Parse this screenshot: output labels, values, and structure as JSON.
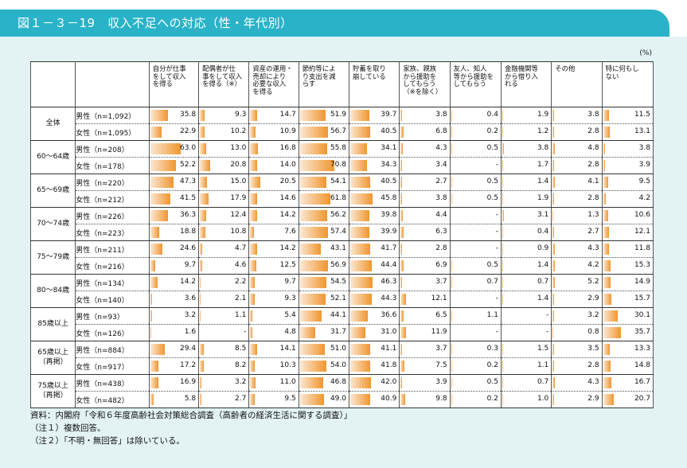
{
  "title": "図１－３－19　収入不足への対応（性・年代別）",
  "unit": "(%)",
  "columns": [
    "自分が仕事\nをして収入\nを得る",
    "配偶者が仕\n事をして収入\nを得る（※）",
    "資産の運用・\n売却により\n必要な収入\nを得る",
    "節約等によ\nり支出を減\nらす",
    "貯蓄を取り\n崩している",
    "家族、親族\nから援助を\nしてもらう\n（※を除く）",
    "友人、知人\n等から援助を\nしてもらう",
    "金融機関等\nから借り入\nれる",
    "その他",
    "特に何もし\nない"
  ],
  "groups": [
    {
      "label": "全体",
      "rows": [
        {
          "sex": "男性（n=1,092）",
          "values": [
            "35.8",
            "9.3",
            "14.7",
            "51.9",
            "39.7",
            "3.8",
            "0.4",
            "1.9",
            "3.8",
            "11.5"
          ]
        },
        {
          "sex": "女性（n=1,095）",
          "values": [
            "22.9",
            "10.2",
            "10.9",
            "56.7",
            "40.5",
            "6.8",
            "0.2",
            "1.2",
            "2.8",
            "13.1"
          ]
        }
      ]
    },
    {
      "label": "60～64歳",
      "rows": [
        {
          "sex": "男性（n=208）",
          "values": [
            "63.0",
            "13.0",
            "16.8",
            "55.8",
            "34.1",
            "4.3",
            "0.5",
            "3.8",
            "4.8",
            "3.8"
          ]
        },
        {
          "sex": "女性（n=178）",
          "values": [
            "52.2",
            "20.8",
            "14.0",
            "70.8",
            "34.3",
            "3.4",
            "-",
            "1.7",
            "2.8",
            "3.9"
          ]
        }
      ]
    },
    {
      "label": "65～69歳",
      "rows": [
        {
          "sex": "男性（n=220）",
          "values": [
            "47.3",
            "15.0",
            "20.5",
            "54.1",
            "40.5",
            "2.7",
            "0.5",
            "1.4",
            "4.1",
            "9.5"
          ]
        },
        {
          "sex": "女性（n=212）",
          "values": [
            "41.5",
            "17.9",
            "14.6",
            "61.8",
            "45.8",
            "3.8",
            "0.5",
            "1.9",
            "2.8",
            "4.2"
          ]
        }
      ]
    },
    {
      "label": "70～74歳",
      "rows": [
        {
          "sex": "男性（n=226）",
          "values": [
            "36.3",
            "12.4",
            "14.2",
            "56.2",
            "39.8",
            "4.4",
            "-",
            "3.1",
            "1.3",
            "10.6"
          ]
        },
        {
          "sex": "女性（n=223）",
          "values": [
            "18.8",
            "10.8",
            "7.6",
            "57.4",
            "39.9",
            "6.3",
            "-",
            "0.4",
            "2.7",
            "12.1"
          ]
        }
      ]
    },
    {
      "label": "75～79歳",
      "rows": [
        {
          "sex": "男性（n=211）",
          "values": [
            "24.6",
            "4.7",
            "14.2",
            "43.1",
            "41.7",
            "2.8",
            "-",
            "0.9",
            "4.3",
            "11.8"
          ]
        },
        {
          "sex": "女性（n=216）",
          "values": [
            "9.7",
            "4.6",
            "12.5",
            "56.9",
            "44.4",
            "6.9",
            "0.5",
            "1.4",
            "4.2",
            "15.3"
          ]
        }
      ]
    },
    {
      "label": "80～84歳",
      "rows": [
        {
          "sex": "男性（n=134）",
          "values": [
            "14.2",
            "2.2",
            "9.7",
            "54.5",
            "46.3",
            "3.7",
            "0.7",
            "0.7",
            "5.2",
            "14.9"
          ]
        },
        {
          "sex": "女性（n=140）",
          "values": [
            "3.6",
            "2.1",
            "9.3",
            "52.1",
            "44.3",
            "12.1",
            "-",
            "1.4",
            "2.9",
            "15.7"
          ]
        }
      ]
    },
    {
      "label": "85歳以上",
      "rows": [
        {
          "sex": "男性（n=93）",
          "values": [
            "3.2",
            "1.1",
            "5.4",
            "44.1",
            "36.6",
            "6.5",
            "1.1",
            "-",
            "3.2",
            "30.1"
          ]
        },
        {
          "sex": "女性（n=126）",
          "values": [
            "1.6",
            "-",
            "4.8",
            "31.7",
            "31.0",
            "11.9",
            "-",
            "-",
            "0.8",
            "35.7"
          ]
        }
      ]
    },
    {
      "label": "65歳以上\n（再掲）",
      "rows": [
        {
          "sex": "男性（n=884）",
          "values": [
            "29.4",
            "8.5",
            "14.1",
            "51.0",
            "41.1",
            "3.7",
            "0.3",
            "1.5",
            "3.5",
            "13.3"
          ]
        },
        {
          "sex": "女性（n=917）",
          "values": [
            "17.2",
            "8.2",
            "10.3",
            "54.0",
            "41.8",
            "7.5",
            "0.2",
            "1.1",
            "2.8",
            "14.8"
          ]
        }
      ]
    },
    {
      "label": "75歳以上\n（再掲）",
      "rows": [
        {
          "sex": "男性（n=438）",
          "values": [
            "16.9",
            "3.2",
            "11.0",
            "46.8",
            "42.0",
            "3.9",
            "0.5",
            "0.7",
            "4.3",
            "16.7"
          ]
        },
        {
          "sex": "女性（n=482）",
          "values": [
            "5.8",
            "2.7",
            "9.5",
            "49.0",
            "40.9",
            "9.8",
            "0.2",
            "1.0",
            "2.9",
            "20.7"
          ]
        }
      ]
    }
  ],
  "notes": [
    "資料：内閣府「令和６年度高齢社会対策総合調査（高齢者の経済生活に関する調査）」",
    "（注１）複数回答。",
    "（注２）「不明・無回答」は除いている。"
  ],
  "colors": {
    "accent": "#2ab3c8",
    "panel": "#e3f3f4",
    "bar": "#f0962f"
  }
}
